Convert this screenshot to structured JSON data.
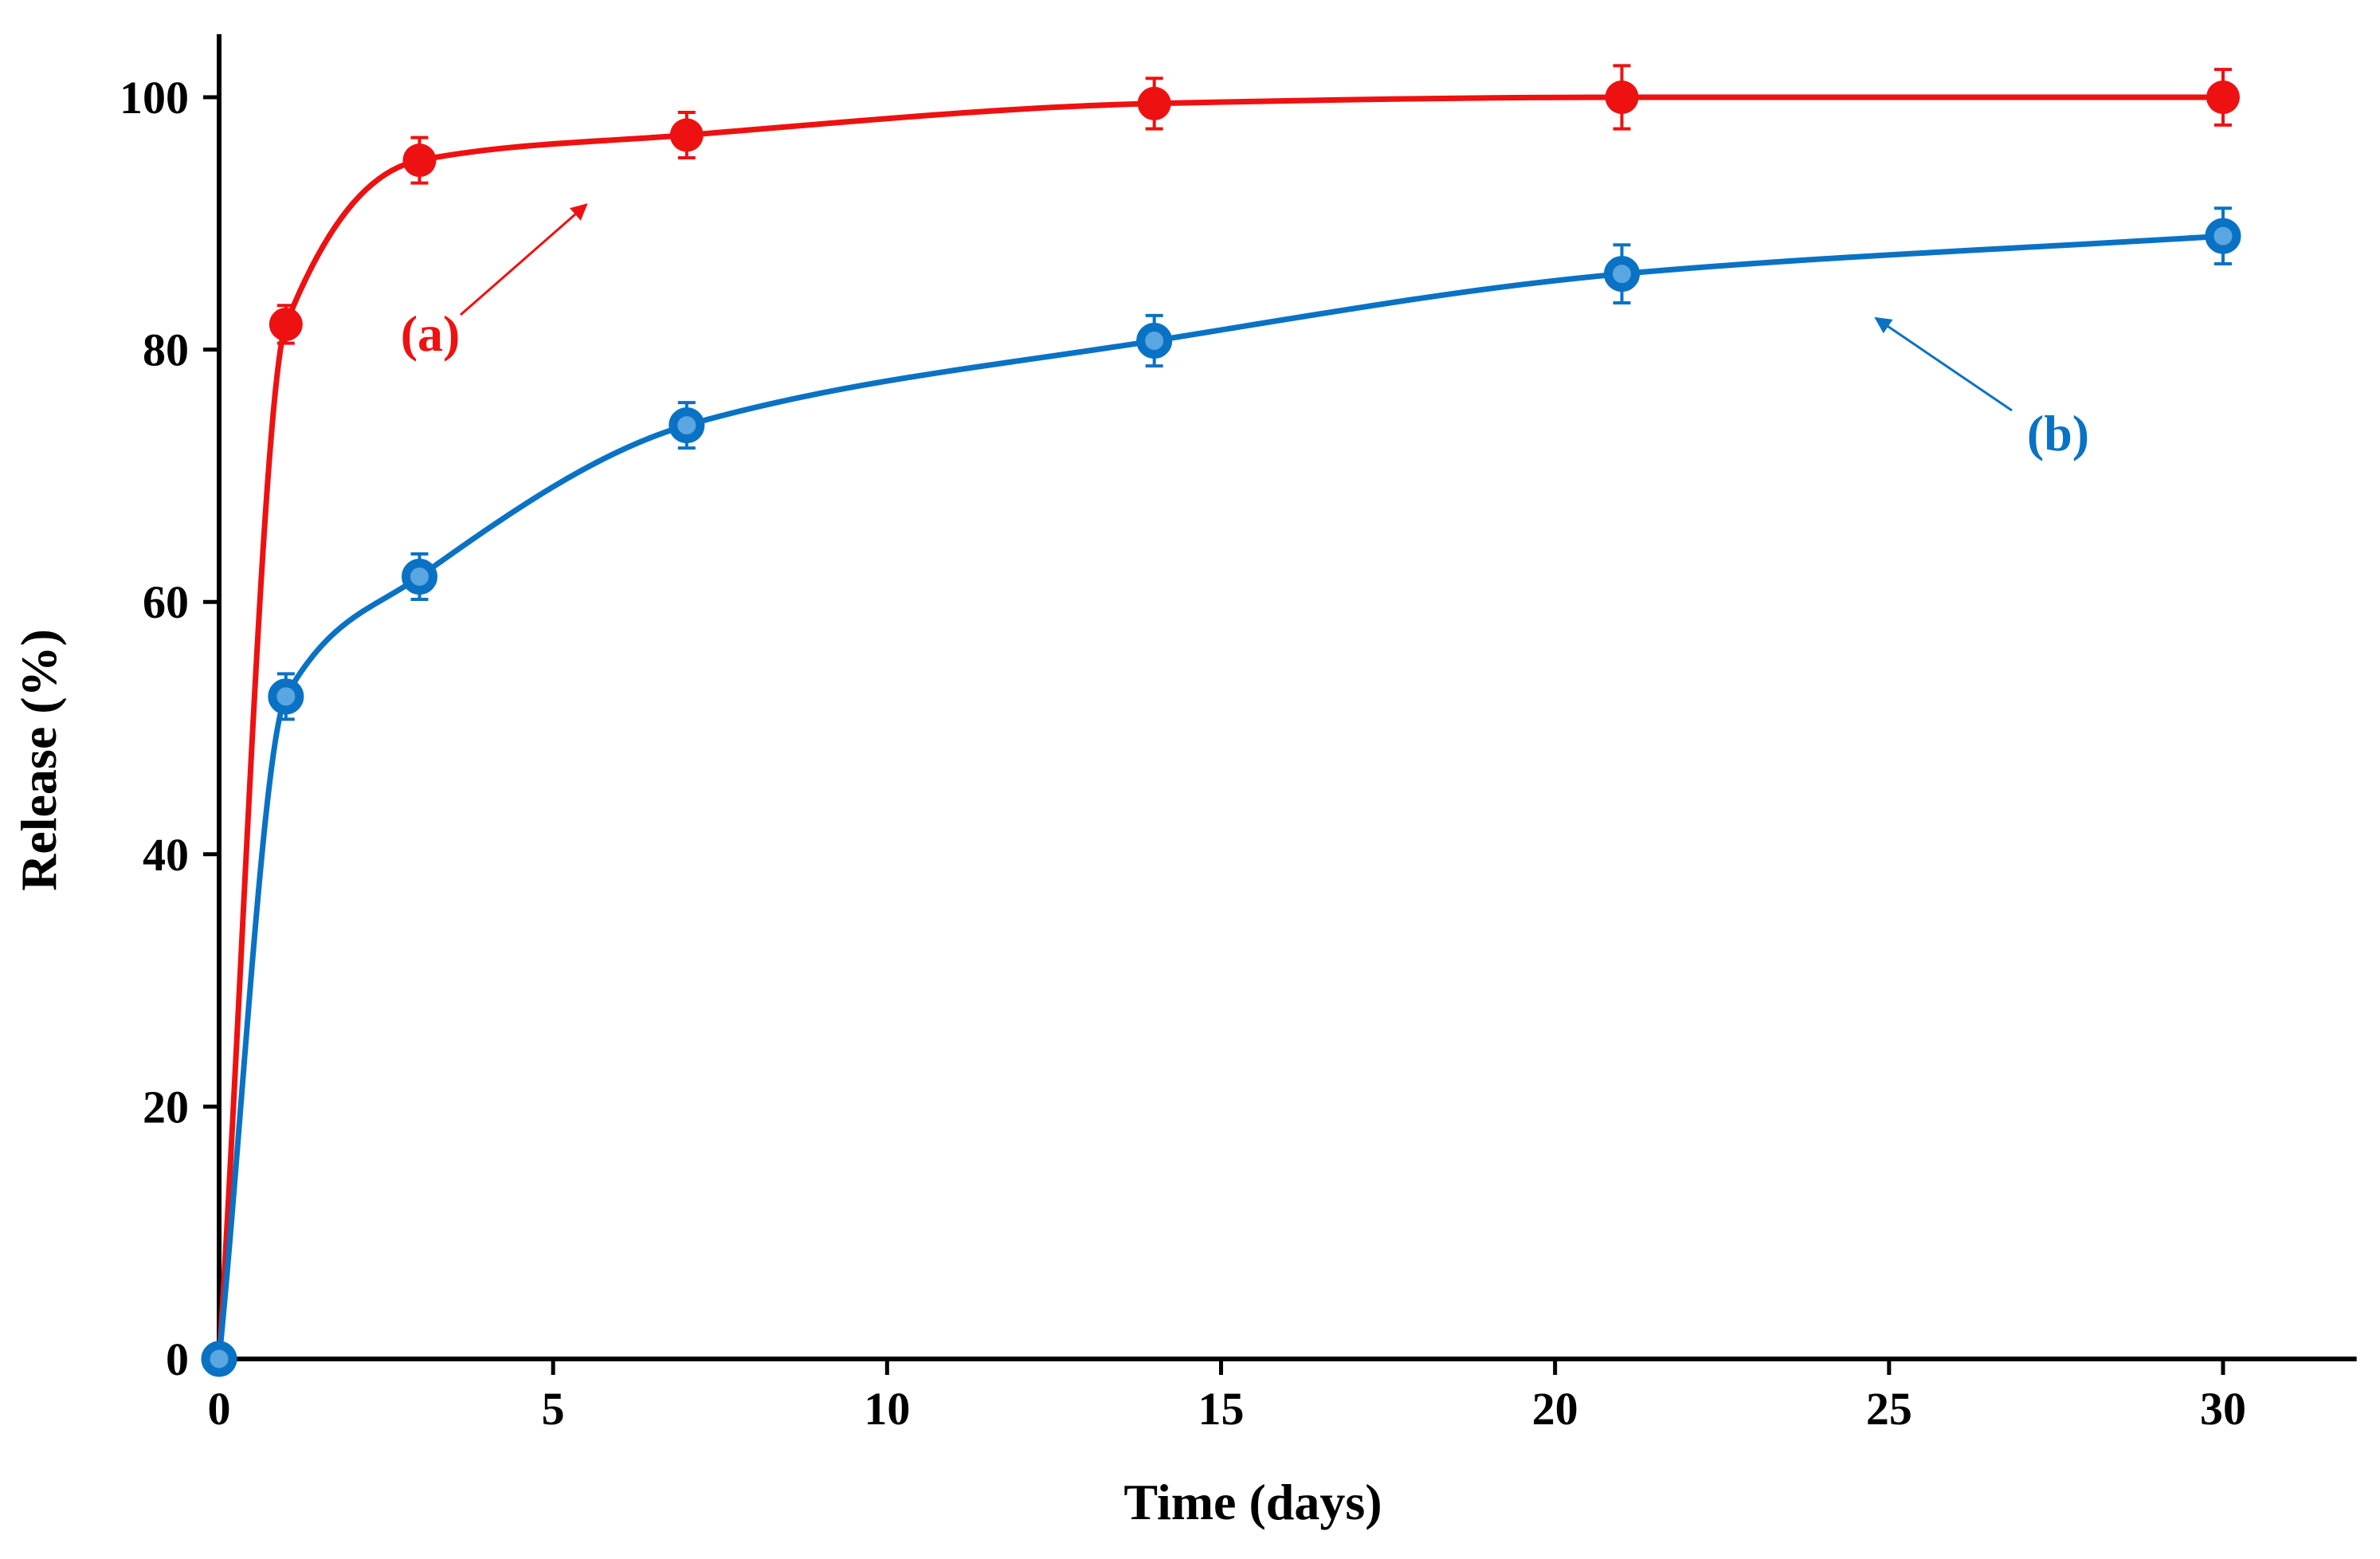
{
  "colors": {
    "series_a": "#ee1111",
    "series_b": "#0a72c4",
    "axis": "#000000",
    "background": "#ffffff"
  },
  "chart_data": {
    "type": "line",
    "title": "",
    "xlabel": "Time (days)",
    "ylabel": "Release (%)",
    "xlim": [
      0,
      32
    ],
    "ylim": [
      0,
      105
    ],
    "xticks": [
      0,
      5,
      10,
      15,
      20,
      25,
      30
    ],
    "yticks": [
      0,
      20,
      40,
      60,
      80,
      100
    ],
    "xtick_labels": [
      "0",
      "5",
      "10",
      "15",
      "20",
      "25",
      "30"
    ],
    "ytick_labels": [
      "0",
      "20",
      "40",
      "60",
      "80",
      "100"
    ],
    "grid": false,
    "legend": "none (inline annotations with arrows)",
    "series": [
      {
        "name": "(a)",
        "color": "#ee1111",
        "marker": "filled-circle",
        "x": [
          0,
          1,
          3,
          7,
          14,
          21,
          30
        ],
        "values": [
          0,
          82,
          95,
          97,
          99.5,
          100,
          100
        ],
        "errors": [
          0,
          1.5,
          1.8,
          1.8,
          2.0,
          2.5,
          2.2
        ]
      },
      {
        "name": "(b)",
        "color": "#0a72c4",
        "marker": "ring-circle",
        "x": [
          0,
          1,
          3,
          7,
          14,
          21,
          30
        ],
        "values": [
          0,
          52.5,
          62,
          74,
          80.7,
          86,
          89
        ],
        "errors": [
          0,
          1.8,
          1.8,
          1.8,
          2.0,
          2.3,
          2.2
        ]
      }
    ],
    "annotations": [
      {
        "text": "(a)",
        "series": 0,
        "arrow_to": {
          "x": 5.5,
          "y": 91.5
        }
      },
      {
        "text": "(b)",
        "series": 1,
        "arrow_to": {
          "x": 24.8,
          "y": 82.5
        }
      }
    ]
  }
}
